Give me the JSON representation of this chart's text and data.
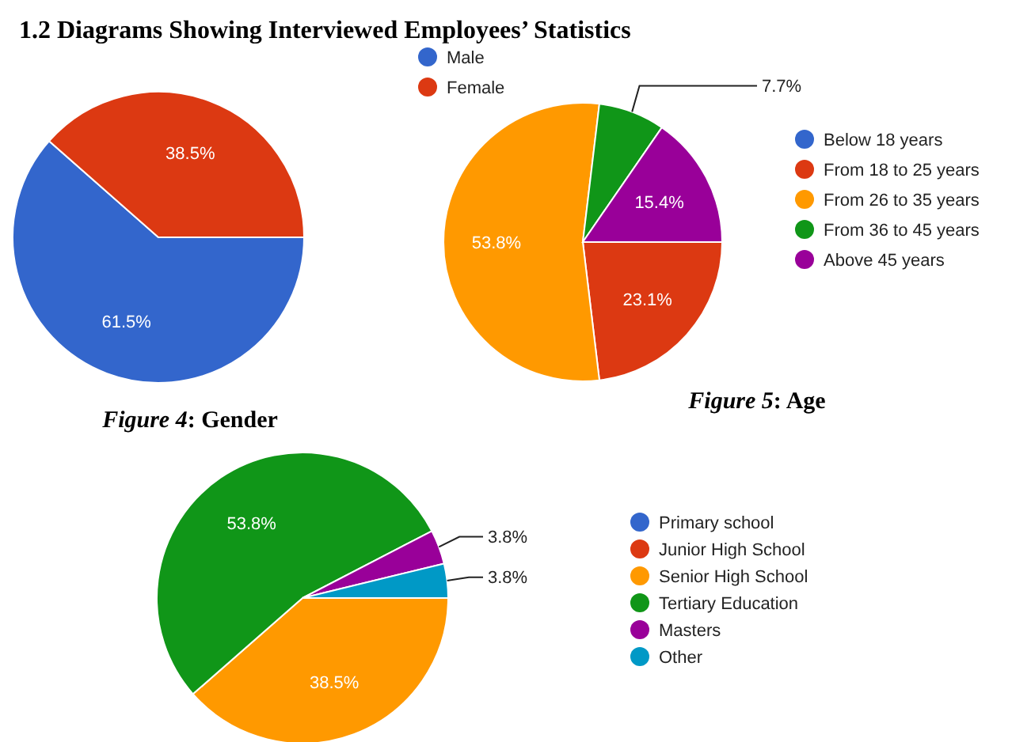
{
  "chart_data": [
    {
      "type": "pie",
      "annotations": [
        "1.2 Diagrams Showing Interviewed Employees’ Statistics"
      ],
      "subtitle": "Figure 4: Gender",
      "categories": [
        "Male",
        "Female"
      ],
      "values": [
        61.5,
        38.5
      ],
      "colors": [
        "#3366cc",
        "#dc3912"
      ],
      "value_labels": [
        "61.5%",
        "38.5%"
      ],
      "legend": "right"
    },
    {
      "type": "pie",
      "subtitle": "Figure 5: Age",
      "categories": [
        "Below 18 years",
        "From 18 to 25 years",
        "From 26 to 35 years",
        "From 36 to 45 years",
        "Above 45 years"
      ],
      "values": [
        0,
        23.1,
        53.8,
        7.7,
        15.4
      ],
      "colors": [
        "#3366cc",
        "#dc3912",
        "#ff9900",
        "#109618",
        "#990099"
      ],
      "value_labels": [
        null,
        "23.1%",
        "53.8%",
        "7.7%",
        "15.4%"
      ],
      "legend": "right"
    },
    {
      "type": "pie",
      "categories": [
        "Primary school",
        "Junior High School",
        "Senior High School",
        "Tertiary Education",
        "Masters",
        "Other"
      ],
      "values": [
        0,
        0,
        38.5,
        53.8,
        3.8,
        3.8
      ],
      "colors": [
        "#3366cc",
        "#dc3912",
        "#ff9900",
        "#109618",
        "#990099",
        "#0099c6"
      ],
      "value_labels": [
        null,
        null,
        "38.5%",
        "53.8%",
        "3.8%",
        "3.8%"
      ],
      "legend": "right"
    }
  ]
}
